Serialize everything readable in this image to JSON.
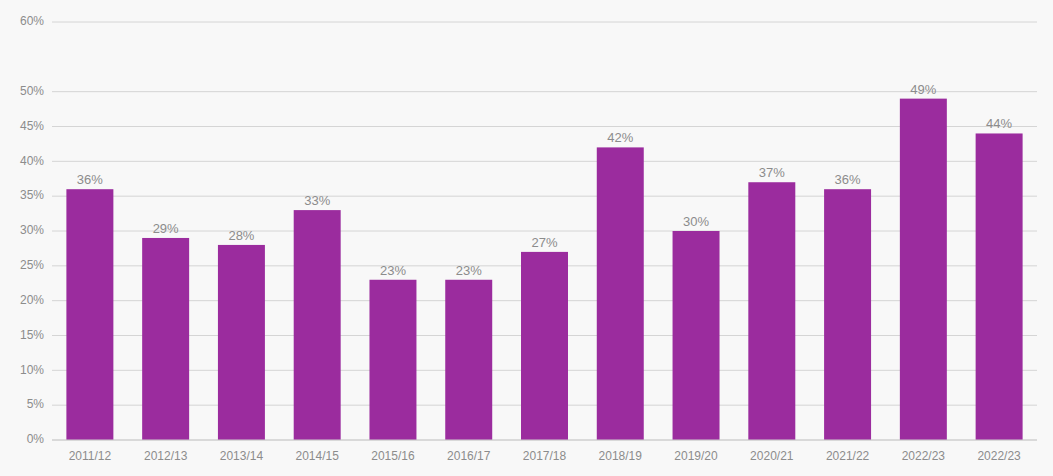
{
  "chart_data": {
    "type": "bar",
    "categories": [
      "2011/12",
      "2012/13",
      "2013/14",
      "2014/15",
      "2015/16",
      "2016/17",
      "2017/18",
      "2018/19",
      "2019/20",
      "2020/21",
      "2021/22",
      "2022/23",
      "2022/23"
    ],
    "values": [
      36,
      29,
      28,
      33,
      23,
      23,
      27,
      42,
      30,
      37,
      36,
      49,
      44
    ],
    "value_labels": [
      "36%",
      "29%",
      "28%",
      "33%",
      "23%",
      "23%",
      "27%",
      "42%",
      "30%",
      "37%",
      "36%",
      "49%",
      "44%"
    ],
    "data_labels": true,
    "color": "#9B2C9E",
    "ylim": [
      0,
      60
    ],
    "yticks": [
      {
        "value": 0,
        "label": "0%"
      },
      {
        "value": 5,
        "label": "5%"
      },
      {
        "value": 10,
        "label": "10%"
      },
      {
        "value": 15,
        "label": "15%"
      },
      {
        "value": 20,
        "label": "20%"
      },
      {
        "value": 25,
        "label": "25%"
      },
      {
        "value": 30,
        "label": "30%"
      },
      {
        "value": 35,
        "label": "35%"
      },
      {
        "value": 40,
        "label": "40%"
      },
      {
        "value": 45,
        "label": "45%"
      },
      {
        "value": 50,
        "label": "50%"
      },
      {
        "value": 60,
        "label": "60%"
      }
    ],
    "grid": true
  }
}
